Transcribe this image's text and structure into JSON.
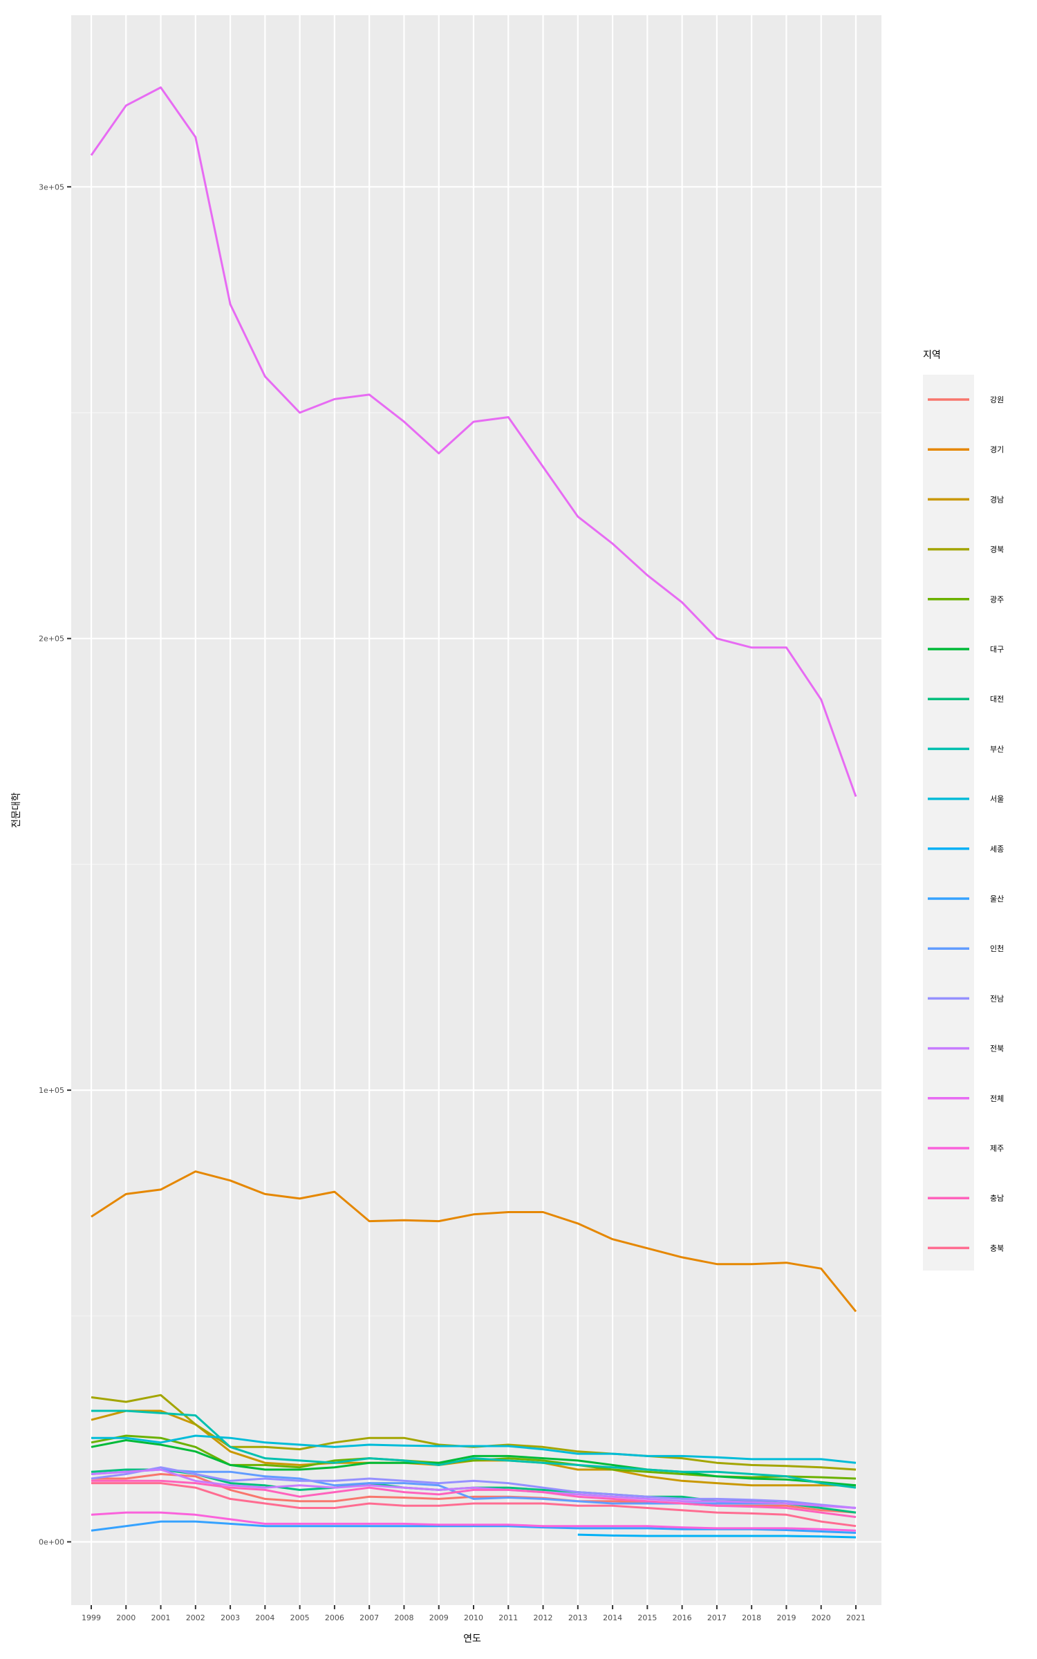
{
  "chart_data": {
    "type": "line",
    "title": "",
    "xlabel": "연도",
    "ylabel": "전문대학",
    "ylim": [
      -14000,
      338000
    ],
    "y_ticks": [
      {
        "value": 0,
        "label": "0e+00"
      },
      {
        "value": 100000,
        "label": "1e+05"
      },
      {
        "value": 200000,
        "label": "2e+05"
      },
      {
        "value": 300000,
        "label": "3e+05"
      }
    ],
    "x": [
      "1999",
      "2000",
      "2001",
      "2002",
      "2003",
      "2004",
      "2005",
      "2006",
      "2007",
      "2008",
      "2009",
      "2010",
      "2011",
      "2012",
      "2013",
      "2014",
      "2015",
      "2016",
      "2017",
      "2018",
      "2019",
      "2020",
      "2021"
    ],
    "legend_title": "지역",
    "legend_position": "right",
    "grid": true,
    "series": [
      {
        "name": "강원",
        "color": "#F8766D",
        "values": [
          14000,
          14000,
          15000,
          14500,
          11500,
          9500,
          9000,
          9000,
          10000,
          9800,
          9500,
          10000,
          10000,
          9700,
          9000,
          9000,
          8800,
          8500,
          8000,
          8000,
          8000,
          7000,
          6500
        ]
      },
      {
        "name": "경기",
        "color": "#E58700",
        "values": [
          72000,
          77000,
          78000,
          82000,
          80000,
          77000,
          76000,
          77500,
          71000,
          71200,
          71000,
          72500,
          73000,
          73000,
          70500,
          67000,
          65000,
          63000,
          61500,
          61500,
          61800,
          60500,
          51000
        ]
      },
      {
        "name": "경남",
        "color": "#C99800",
        "values": [
          27000,
          29000,
          29000,
          26000,
          20000,
          17500,
          17000,
          17500,
          17500,
          17500,
          17000,
          18000,
          18000,
          17500,
          16000,
          16000,
          14500,
          13500,
          13000,
          12500,
          12500,
          12500,
          12500
        ]
      },
      {
        "name": "경북",
        "color": "#A3A500",
        "values": [
          32000,
          31000,
          32500,
          26000,
          21000,
          21000,
          20500,
          22000,
          23000,
          23000,
          21500,
          21000,
          21500,
          21000,
          20000,
          19500,
          19000,
          18500,
          17500,
          17000,
          16800,
          16500,
          16000
        ]
      },
      {
        "name": "광주",
        "color": "#6BB100",
        "values": [
          22000,
          23500,
          23000,
          21000,
          17000,
          17000,
          16500,
          18000,
          18500,
          18000,
          17500,
          18000,
          18500,
          18000,
          17000,
          16000,
          15500,
          15000,
          14500,
          14300,
          14500,
          14300,
          14000
        ]
      },
      {
        "name": "대구",
        "color": "#00BA38",
        "values": [
          21000,
          22500,
          21500,
          20000,
          17000,
          16000,
          16000,
          16500,
          17500,
          17500,
          17500,
          19000,
          19000,
          18500,
          18000,
          17000,
          16000,
          15500,
          14500,
          14000,
          13800,
          13200,
          12500
        ]
      },
      {
        "name": "대전",
        "color": "#00BF7D",
        "values": [
          15500,
          16000,
          16000,
          15000,
          13000,
          12500,
          11500,
          12000,
          13000,
          12000,
          11500,
          12000,
          12000,
          11500,
          11000,
          10500,
          10000,
          10000,
          9000,
          9000,
          8500,
          7500,
          6500
        ]
      },
      {
        "name": "부산",
        "color": "#00C0AF",
        "values": [
          29000,
          29000,
          28500,
          28000,
          21000,
          18500,
          18000,
          17500,
          18500,
          18000,
          17000,
          18500,
          18000,
          17500,
          17000,
          16500,
          16000,
          15500,
          15500,
          15000,
          14500,
          13000,
          12000
        ]
      },
      {
        "name": "서울",
        "color": "#00BCD8",
        "values": [
          23000,
          23000,
          22000,
          23500,
          23000,
          22000,
          21500,
          21000,
          21500,
          21300,
          21200,
          21200,
          21200,
          20500,
          19500,
          19500,
          19000,
          19000,
          18700,
          18300,
          18300,
          18300,
          17500
        ]
      },
      {
        "name": "세종",
        "color": "#00B0F6",
        "values": [
          null,
          null,
          null,
          null,
          null,
          null,
          null,
          null,
          null,
          null,
          null,
          null,
          null,
          null,
          1600,
          1400,
          1300,
          1300,
          1300,
          1300,
          1300,
          1200,
          1000
        ]
      },
      {
        "name": "울산",
        "color": "#35A2FF",
        "values": [
          2500,
          3500,
          4500,
          4500,
          4000,
          3500,
          3500,
          3500,
          3500,
          3500,
          3500,
          3500,
          3500,
          3200,
          3000,
          3000,
          3000,
          2800,
          2800,
          2800,
          2600,
          2300,
          2000
        ]
      },
      {
        "name": "인천",
        "color": "#619CFF",
        "values": [
          15000,
          15500,
          16000,
          15500,
          15500,
          14500,
          14000,
          12500,
          13000,
          13000,
          12500,
          9500,
          9800,
          9500,
          9000,
          8500,
          8500,
          8500,
          8500,
          8500,
          8500,
          8000,
          7500
        ]
      },
      {
        "name": "전남",
        "color": "#9590FF",
        "values": [
          14000,
          15000,
          16500,
          15000,
          13500,
          14000,
          13500,
          13500,
          14000,
          13500,
          13000,
          13500,
          13000,
          12000,
          11000,
          10500,
          10000,
          9500,
          9500,
          9300,
          9000,
          8200,
          7500
        ]
      },
      {
        "name": "전북",
        "color": "#C77CFF",
        "values": [
          15000,
          15500,
          16000,
          13500,
          12500,
          12000,
          12500,
          12000,
          12500,
          12000,
          11500,
          12000,
          11500,
          11000,
          10500,
          10000,
          9500,
          9000,
          9000,
          8800,
          8500,
          8000,
          7500
        ]
      },
      {
        "name": "전체",
        "color": "#E76BF3",
        "values": [
          307000,
          318000,
          322000,
          311000,
          274000,
          258000,
          250000,
          253000,
          254000,
          248000,
          241000,
          248000,
          249000,
          238000,
          227000,
          221000,
          214000,
          208000,
          200000,
          198000,
          198000,
          186500,
          165000
        ]
      },
      {
        "name": "제주",
        "color": "#FA62DB",
        "values": [
          6000,
          6500,
          6500,
          6000,
          5000,
          4000,
          4000,
          4000,
          4000,
          4000,
          3800,
          3800,
          3800,
          3500,
          3500,
          3500,
          3500,
          3200,
          3000,
          3000,
          3000,
          2800,
          2500
        ]
      },
      {
        "name": "충남",
        "color": "#FF62BC",
        "values": [
          13500,
          13500,
          13500,
          13000,
          12000,
          11500,
          10000,
          11000,
          12000,
          11000,
          10500,
          11500,
          11500,
          11000,
          10000,
          9500,
          9000,
          8500,
          8000,
          7800,
          7500,
          6500,
          5500
        ]
      },
      {
        "name": "충북",
        "color": "#FF6C91",
        "values": [
          13000,
          13000,
          13000,
          12000,
          9500,
          8500,
          7500,
          7500,
          8500,
          8000,
          8000,
          8500,
          8500,
          8500,
          8000,
          8000,
          7500,
          7000,
          6500,
          6300,
          6000,
          4500,
          3500
        ]
      }
    ]
  }
}
